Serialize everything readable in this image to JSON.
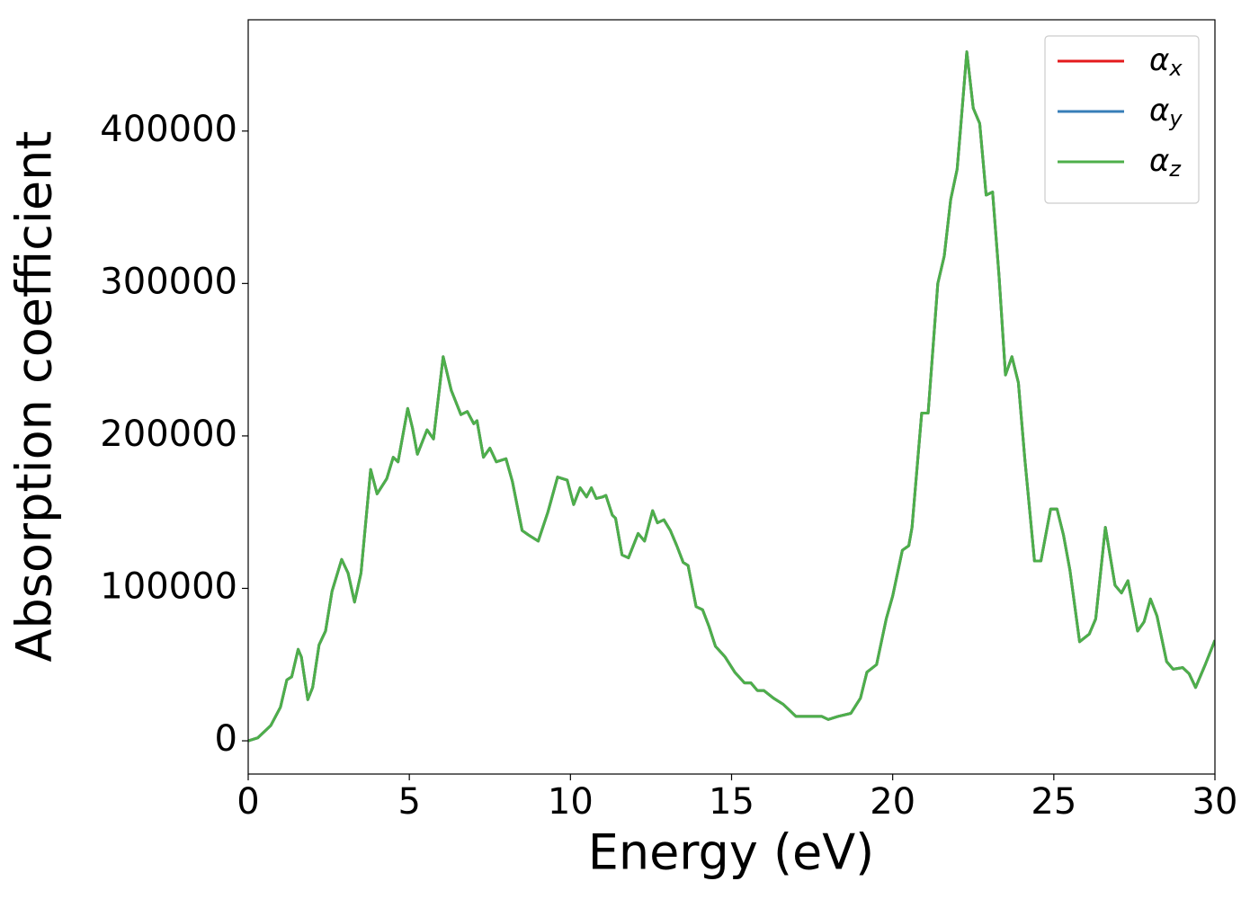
{
  "chart_data": {
    "type": "line",
    "xlabel": "Energy (eV)",
    "ylabel": "Absorption coefficient",
    "xlim": [
      0,
      30
    ],
    "ylim": [
      -21800,
      473000
    ],
    "xticks": [
      0,
      5,
      10,
      15,
      20,
      25,
      30
    ],
    "yticks": [
      0,
      100000,
      200000,
      300000,
      400000
    ],
    "legend": "upper right",
    "grid": false,
    "x": [
      0,
      0.3,
      0.7,
      1.0,
      1.2,
      1.35,
      1.55,
      1.65,
      1.85,
      2.0,
      2.2,
      2.4,
      2.6,
      2.9,
      3.1,
      3.3,
      3.5,
      3.8,
      4.0,
      4.3,
      4.5,
      4.65,
      4.95,
      5.1,
      5.25,
      5.55,
      5.75,
      6.05,
      6.3,
      6.6,
      6.8,
      7.0,
      7.1,
      7.3,
      7.5,
      7.7,
      8.0,
      8.2,
      8.5,
      8.7,
      9.0,
      9.3,
      9.6,
      9.9,
      10.1,
      10.3,
      10.5,
      10.65,
      10.8,
      11.0,
      11.1,
      11.3,
      11.4,
      11.6,
      11.8,
      12.1,
      12.3,
      12.55,
      12.7,
      12.9,
      13.1,
      13.3,
      13.5,
      13.65,
      13.9,
      14.1,
      14.3,
      14.5,
      14.8,
      15.1,
      15.4,
      15.6,
      15.8,
      16.0,
      16.3,
      16.6,
      17.0,
      17.5,
      17.8,
      18.0,
      18.3,
      18.7,
      19.0,
      19.2,
      19.5,
      19.8,
      20.0,
      20.3,
      20.5,
      20.6,
      20.9,
      21.1,
      21.4,
      21.6,
      21.8,
      22.0,
      22.1,
      22.3,
      22.5,
      22.7,
      22.9,
      23.1,
      23.3,
      23.5,
      23.7,
      23.9,
      24.1,
      24.4,
      24.6,
      24.9,
      25.1,
      25.3,
      25.5,
      25.8,
      26.1,
      26.3,
      26.6,
      26.9,
      27.1,
      27.3,
      27.6,
      27.8,
      28.0,
      28.2,
      28.5,
      28.7,
      29.0,
      29.2,
      29.4,
      29.7,
      30.0
    ],
    "series": [
      {
        "name": "αx",
        "color": "#e41a1c",
        "values": [
          0,
          2000,
          10000,
          22000,
          40000,
          42000,
          60000,
          55000,
          27000,
          35000,
          63000,
          72000,
          98000,
          119000,
          110000,
          91000,
          110000,
          178000,
          162000,
          172000,
          186000,
          183000,
          218000,
          205000,
          188000,
          204000,
          198000,
          252000,
          230000,
          214000,
          216000,
          208000,
          210000,
          186000,
          192000,
          183000,
          185000,
          170000,
          138000,
          135000,
          131000,
          150000,
          173000,
          171000,
          155000,
          166000,
          160000,
          166000,
          159000,
          160000,
          161000,
          148000,
          146000,
          122000,
          120000,
          136000,
          131000,
          151000,
          143000,
          145000,
          138000,
          128000,
          117000,
          115000,
          88000,
          86000,
          75000,
          62000,
          55000,
          45000,
          38000,
          38000,
          33000,
          33000,
          28000,
          24000,
          16000,
          16000,
          16000,
          14000,
          16000,
          18000,
          28000,
          45000,
          50000,
          80000,
          95000,
          125000,
          128000,
          140000,
          215000,
          215000,
          300000,
          318000,
          355000,
          375000,
          400000,
          452000,
          415000,
          405000,
          358000,
          360000,
          305000,
          240000,
          252000,
          235000,
          185000,
          118000,
          118000,
          152000,
          152000,
          135000,
          112000,
          65000,
          70000,
          80000,
          140000,
          102000,
          97000,
          105000,
          72000,
          78000,
          93000,
          82000,
          52000,
          47000,
          48000,
          44000,
          35000,
          50000,
          66000
        ]
      },
      {
        "name": "αy",
        "color": "#377eb8",
        "values": [
          0,
          2000,
          10000,
          22000,
          40000,
          42000,
          60000,
          55000,
          27000,
          35000,
          63000,
          72000,
          98000,
          119000,
          110000,
          91000,
          110000,
          178000,
          162000,
          172000,
          186000,
          183000,
          218000,
          205000,
          188000,
          204000,
          198000,
          252000,
          230000,
          214000,
          216000,
          208000,
          210000,
          186000,
          192000,
          183000,
          185000,
          170000,
          138000,
          135000,
          131000,
          150000,
          173000,
          171000,
          155000,
          166000,
          160000,
          166000,
          159000,
          160000,
          161000,
          148000,
          146000,
          122000,
          120000,
          136000,
          131000,
          151000,
          143000,
          145000,
          138000,
          128000,
          117000,
          115000,
          88000,
          86000,
          75000,
          62000,
          55000,
          45000,
          38000,
          38000,
          33000,
          33000,
          28000,
          24000,
          16000,
          16000,
          16000,
          14000,
          16000,
          18000,
          28000,
          45000,
          50000,
          80000,
          95000,
          125000,
          128000,
          140000,
          215000,
          215000,
          300000,
          318000,
          355000,
          375000,
          400000,
          452000,
          415000,
          405000,
          358000,
          360000,
          305000,
          240000,
          252000,
          235000,
          185000,
          118000,
          118000,
          152000,
          152000,
          135000,
          112000,
          65000,
          70000,
          80000,
          140000,
          102000,
          97000,
          105000,
          72000,
          78000,
          93000,
          82000,
          52000,
          47000,
          48000,
          44000,
          35000,
          50000,
          66000
        ]
      },
      {
        "name": "αz",
        "color": "#4daf4a",
        "values": [
          0,
          2000,
          10000,
          22000,
          40000,
          42000,
          60000,
          55000,
          27000,
          35000,
          63000,
          72000,
          98000,
          119000,
          110000,
          91000,
          110000,
          178000,
          162000,
          172000,
          186000,
          183000,
          218000,
          205000,
          188000,
          204000,
          198000,
          252000,
          230000,
          214000,
          216000,
          208000,
          210000,
          186000,
          192000,
          183000,
          185000,
          170000,
          138000,
          135000,
          131000,
          150000,
          173000,
          171000,
          155000,
          166000,
          160000,
          166000,
          159000,
          160000,
          161000,
          148000,
          146000,
          122000,
          120000,
          136000,
          131000,
          151000,
          143000,
          145000,
          138000,
          128000,
          117000,
          115000,
          88000,
          86000,
          75000,
          62000,
          55000,
          45000,
          38000,
          38000,
          33000,
          33000,
          28000,
          24000,
          16000,
          16000,
          16000,
          14000,
          16000,
          18000,
          28000,
          45000,
          50000,
          80000,
          95000,
          125000,
          128000,
          140000,
          215000,
          215000,
          300000,
          318000,
          355000,
          375000,
          400000,
          452000,
          415000,
          405000,
          358000,
          360000,
          305000,
          240000,
          252000,
          235000,
          185000,
          118000,
          118000,
          152000,
          152000,
          135000,
          112000,
          65000,
          70000,
          80000,
          140000,
          102000,
          97000,
          105000,
          72000,
          78000,
          93000,
          82000,
          52000,
          47000,
          48000,
          44000,
          35000,
          50000,
          66000
        ]
      }
    ]
  }
}
